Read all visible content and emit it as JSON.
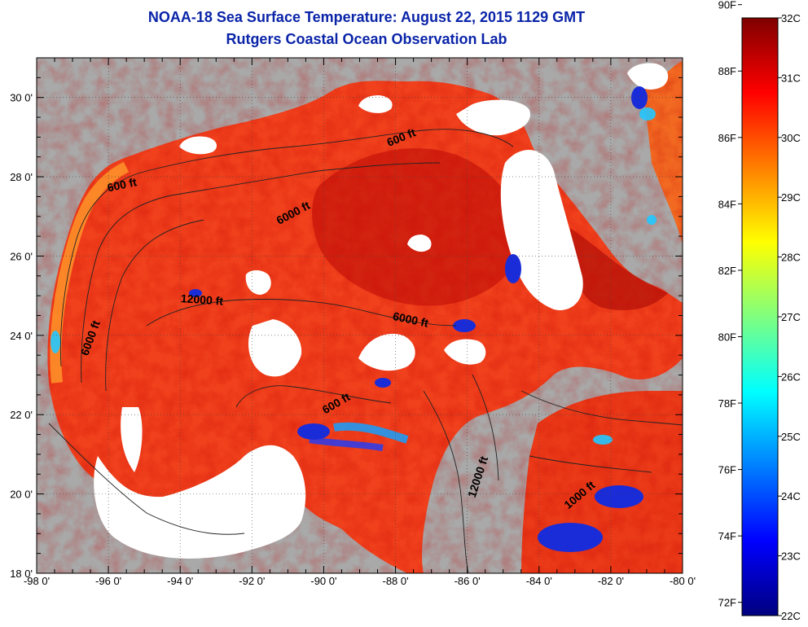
{
  "title": {
    "line1": "NOAA-18 Sea Surface Temperature:  August 22, 2015 1129 GMT",
    "line2": "Rutgers Coastal Ocean Observation Lab"
  },
  "map": {
    "lon_range": [
      -98,
      -80
    ],
    "lat_range": [
      18,
      31
    ],
    "x_ticks": [
      {
        "value": -98,
        "label": "-98 0'"
      },
      {
        "value": -96,
        "label": "-96 0'"
      },
      {
        "value": -94,
        "label": "-94 0'"
      },
      {
        "value": -92,
        "label": "-92 0'"
      },
      {
        "value": -90,
        "label": "-90 0'"
      },
      {
        "value": -88,
        "label": "-88 0'"
      },
      {
        "value": -86,
        "label": "-86 0'"
      },
      {
        "value": -84,
        "label": "-84 0'"
      },
      {
        "value": -82,
        "label": "-82 0'"
      },
      {
        "value": -80,
        "label": "-80 0'"
      }
    ],
    "y_ticks": [
      {
        "value": 18,
        "label": "18 0'"
      },
      {
        "value": 20,
        "label": "20 0'"
      },
      {
        "value": 22,
        "label": "22 0'"
      },
      {
        "value": 24,
        "label": "24 0'"
      },
      {
        "value": 26,
        "label": "26 0'"
      },
      {
        "value": 28,
        "label": "28 0'"
      },
      {
        "value": 30,
        "label": "30 0'"
      }
    ],
    "contour_labels": [
      {
        "text": "600 ft",
        "lon": -95.6,
        "lat": 27.7,
        "rotate": -12
      },
      {
        "text": "600 ft",
        "lon": -87.8,
        "lat": 28.9,
        "rotate": -22
      },
      {
        "text": "6000 ft",
        "lon": -90.8,
        "lat": 27.0,
        "rotate": -28
      },
      {
        "text": "12000 ft",
        "lon": -93.4,
        "lat": 24.8,
        "rotate": 4
      },
      {
        "text": "6000 ft",
        "lon": -96.4,
        "lat": 23.9,
        "rotate": -70
      },
      {
        "text": "6000 ft",
        "lon": -87.6,
        "lat": 24.3,
        "rotate": 12
      },
      {
        "text": "600 ft",
        "lon": -89.6,
        "lat": 22.2,
        "rotate": -30
      },
      {
        "text": "12000 ft",
        "lon": -85.6,
        "lat": 20.4,
        "rotate": -72
      },
      {
        "text": "1000 ft",
        "lon": -82.8,
        "lat": 19.9,
        "rotate": -40
      }
    ]
  },
  "colorbar": {
    "min_c": 22,
    "max_c": 32,
    "fahrenheit_labels": [
      {
        "value": 90,
        "label": "90F"
      },
      {
        "value": 88,
        "label": "88F"
      },
      {
        "value": 86,
        "label": "86F"
      },
      {
        "value": 84,
        "label": "84F"
      },
      {
        "value": 82,
        "label": "82F"
      },
      {
        "value": 80,
        "label": "80F"
      },
      {
        "value": 78,
        "label": "78F"
      },
      {
        "value": 76,
        "label": "76F"
      },
      {
        "value": 74,
        "label": "74F"
      },
      {
        "value": 72,
        "label": "72F"
      }
    ],
    "celsius_labels": [
      {
        "value": 32,
        "label": "32C"
      },
      {
        "value": 31,
        "label": "31C"
      },
      {
        "value": 30,
        "label": "30C"
      },
      {
        "value": 29,
        "label": "29C"
      },
      {
        "value": 28,
        "label": "28C"
      },
      {
        "value": 27,
        "label": "27C"
      },
      {
        "value": 26,
        "label": "26C"
      },
      {
        "value": 25,
        "label": "25C"
      },
      {
        "value": 24,
        "label": "24C"
      },
      {
        "value": 23,
        "label": "23C"
      },
      {
        "value": 22,
        "label": "22C"
      }
    ],
    "colors": [
      "#00007f",
      "#0000ff",
      "#007fff",
      "#00ffff",
      "#7fff7f",
      "#ffff00",
      "#ff7f00",
      "#ff0000",
      "#7f0000"
    ]
  },
  "colors": {
    "land": "#a9a9a9",
    "cloud": "#ffffff",
    "warm_sea": "#f0401c",
    "hot_sea": "#c8180c",
    "title": "#0a24a8"
  }
}
